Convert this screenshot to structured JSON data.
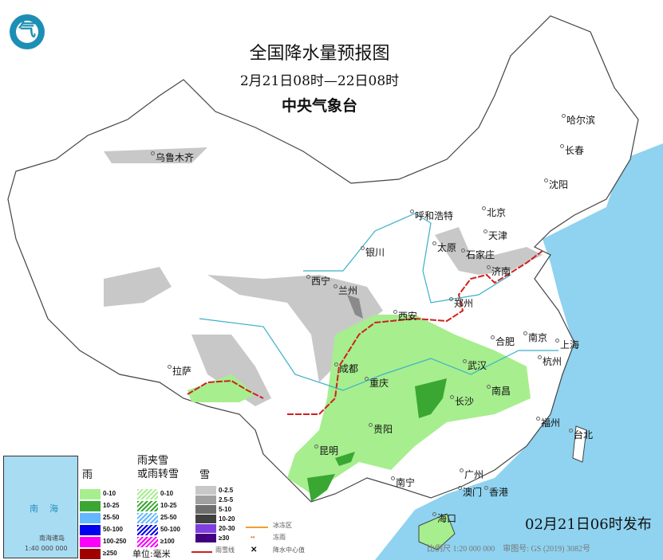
{
  "header": {
    "title": "全国降水量预报图",
    "period": "2月21日08时—22日08时",
    "agency": "中央气象台",
    "logo_glyph": "气"
  },
  "colors": {
    "sea": "#8fd3f0",
    "rain_0_10": "#a6ee8e",
    "rain_10_25": "#3aa732",
    "snow_0_2_5": "#c8c8c8",
    "snow_2_5_5": "#a0a0a0",
    "rain_snow_line": "#d02020"
  },
  "cities": [
    "乌鲁木齐",
    "哈尔滨",
    "长春",
    "沈阳",
    "呼和浩特",
    "北京",
    "天津",
    "太原",
    "石家庄",
    "银川",
    "西宁",
    "兰州",
    "济南",
    "郑州",
    "西安",
    "合肥",
    "南京",
    "上海",
    "拉萨",
    "成都",
    "重庆",
    "武汉",
    "杭州",
    "长沙",
    "南昌",
    "贵阳",
    "福州",
    "台北",
    "昆明",
    "南宁",
    "广州",
    "澳门",
    "香港",
    "海口"
  ],
  "legend": {
    "rain": {
      "title": "雨",
      "items": [
        "0-10",
        "10-25",
        "25-50",
        "50-100",
        "100-250",
        "≥250"
      ],
      "colors": [
        "#a6ee8e",
        "#3aa732",
        "#61b8ff",
        "#0000f0",
        "#fa00fa",
        "#a00000"
      ]
    },
    "mixed": {
      "title_line1": "雨夹雪",
      "title_line2": "或雨转雪",
      "items": [
        "0-10",
        "10-25",
        "25-50",
        "50-100",
        "≥100"
      ],
      "colors": [
        "#a6ee8e",
        "#3aa732",
        "#61b8ff",
        "#0000f0",
        "#fa00fa"
      ]
    },
    "snow": {
      "title": "雪",
      "items": [
        "0-2.5",
        "2.5-5",
        "5-10",
        "10-20",
        "20-30",
        "≥30"
      ],
      "colors": [
        "#c8c8c8",
        "#a0a0a0",
        "#6e6e6e",
        "#404040",
        "#7f3fdf",
        "#400080"
      ]
    },
    "unit": "单位:毫米",
    "symbols": [
      "冰冻区",
      "冻雨",
      "雨雪线",
      "降水中心值"
    ]
  },
  "inset": {
    "sea_label": "南海",
    "name": "南海诸岛",
    "scale": "1:40 000 000"
  },
  "footer": {
    "issued": "02月21日06时发布",
    "scale": "比例尺 1:20 000 000",
    "map_number": "审图号: GS (2019) 3082号"
  }
}
